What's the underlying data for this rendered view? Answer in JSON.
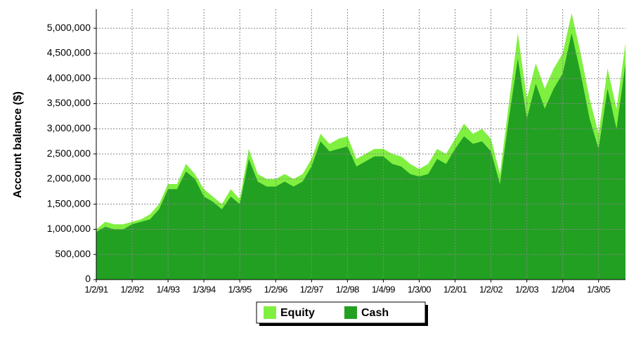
{
  "chart_data": {
    "type": "area",
    "ylabel": "Account balance ($)",
    "categories": [
      "1/2/91",
      null,
      null,
      null,
      "1/2/92",
      null,
      null,
      null,
      "1/4/93",
      null,
      null,
      null,
      "1/3/94",
      null,
      null,
      null,
      "1/3/95",
      null,
      null,
      null,
      "1/2/96",
      null,
      null,
      null,
      "1/2/97",
      null,
      null,
      null,
      "1/2/98",
      null,
      null,
      null,
      "1/4/99",
      null,
      null,
      null,
      "1/3/00",
      null,
      null,
      null,
      "1/2/01",
      null,
      null,
      null,
      "1/2/02",
      null,
      null,
      null,
      "1/2/03",
      null,
      null,
      null,
      "1/2/04",
      null,
      null,
      null,
      "1/3/05",
      null,
      null,
      null
    ],
    "series": [
      {
        "name": "Equity",
        "color": "#80f040",
        "values": [
          1000000,
          1150000,
          1100000,
          1100000,
          1150000,
          1200000,
          1300000,
          1500000,
          1900000,
          1900000,
          2300000,
          2100000,
          1800000,
          1650000,
          1500000,
          1800000,
          1600000,
          2600000,
          2100000,
          2000000,
          2000000,
          2100000,
          2000000,
          2100000,
          2400000,
          2900000,
          2700000,
          2800000,
          2850000,
          2400000,
          2500000,
          2600000,
          2600000,
          2500000,
          2450000,
          2300000,
          2200000,
          2300000,
          2600000,
          2500000,
          2800000,
          3100000,
          2900000,
          3000000,
          2800000,
          2100000,
          3500000,
          4900000,
          3600000,
          4300000,
          3800000,
          4200000,
          4500000,
          5300000,
          4500000,
          3600000,
          2900000,
          4200000,
          3400000,
          4700000
        ]
      },
      {
        "name": "Cash",
        "color": "#22a022",
        "values": [
          950000,
          1050000,
          1000000,
          1000000,
          1100000,
          1150000,
          1200000,
          1400000,
          1800000,
          1800000,
          2150000,
          2000000,
          1650000,
          1550000,
          1400000,
          1650000,
          1500000,
          2400000,
          1950000,
          1850000,
          1850000,
          1950000,
          1850000,
          1950000,
          2250000,
          2750000,
          2550000,
          2600000,
          2650000,
          2250000,
          2350000,
          2450000,
          2450000,
          2300000,
          2250000,
          2100000,
          2050000,
          2100000,
          2400000,
          2300000,
          2600000,
          2850000,
          2700000,
          2750000,
          2550000,
          1900000,
          3200000,
          4400000,
          3200000,
          3900000,
          3400000,
          3800000,
          4100000,
          4900000,
          4100000,
          3200000,
          2600000,
          3800000,
          3000000,
          4300000
        ]
      }
    ],
    "ylim": [
      0,
      5380000
    ],
    "yticks": [
      0,
      {
        "value": 500000,
        "label": "500,000"
      },
      {
        "value": 1000000,
        "label": "1,000,000"
      },
      {
        "value": 1500000,
        "label": "1,500,000"
      },
      {
        "value": 2000000,
        "label": "2,000,000"
      },
      {
        "value": 2500000,
        "label": "2,500,000"
      },
      {
        "value": 3000000,
        "label": "3,000,000"
      },
      {
        "value": 3500000,
        "label": "3,500,000"
      },
      {
        "value": 4000000,
        "label": "4,000,000"
      },
      {
        "value": 4500000,
        "label": "4,500,000"
      },
      {
        "value": 5000000,
        "label": "5,000,000"
      }
    ],
    "grid": true
  }
}
